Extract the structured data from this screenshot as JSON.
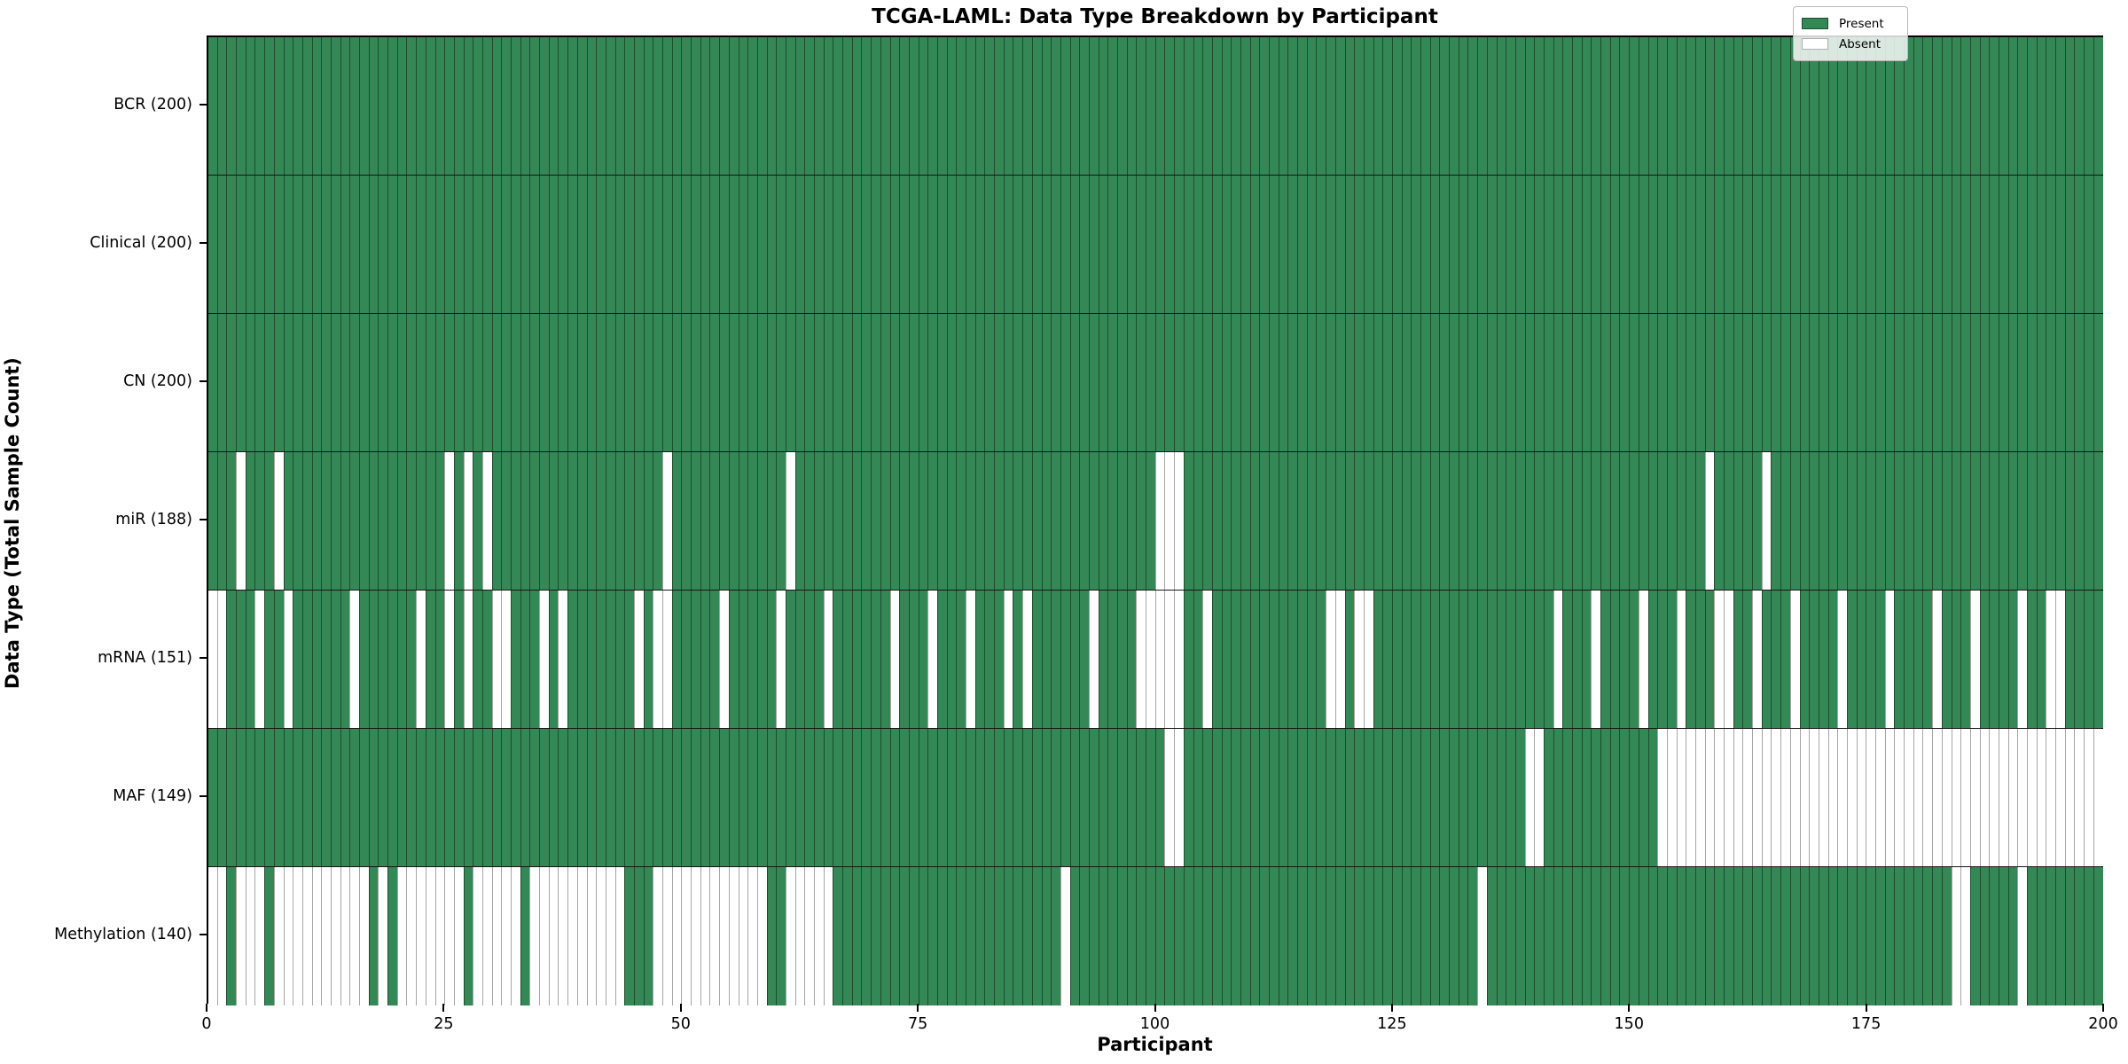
{
  "chart_data": {
    "type": "heatmap",
    "title": "TCGA-LAML: Data Type Breakdown by Participant",
    "xlabel": "Participant",
    "ylabel": "Data Type (Total Sample Count)",
    "n_participants": 200,
    "x_range": [
      0,
      200
    ],
    "x_ticks": [
      0,
      25,
      50,
      75,
      100,
      125,
      150,
      175,
      200
    ],
    "grid": "cell-edges",
    "legend_position": "upper right",
    "legend": [
      {
        "label": "Present",
        "color": "#338856"
      },
      {
        "label": "Absent",
        "color": "#ffffff"
      }
    ],
    "colors": {
      "present": "#338856",
      "present_edge": "#1f4b30",
      "absent": "#ffffff",
      "absent_edge": "#a6a6a6",
      "row_divider": "#161616"
    },
    "rows": [
      {
        "label": "BCR (200)",
        "count": 200,
        "absent": []
      },
      {
        "label": "Clinical (200)",
        "count": 200,
        "absent": []
      },
      {
        "label": "CN (200)",
        "count": 200,
        "absent": []
      },
      {
        "label": "miR (188)",
        "count": 188,
        "absent": [
          3,
          7,
          25,
          27,
          29,
          48,
          61,
          100,
          101,
          102,
          158,
          164
        ]
      },
      {
        "label": "mRNA (151)",
        "count": 151,
        "absent": [
          0,
          1,
          5,
          8,
          15,
          22,
          25,
          27,
          30,
          31,
          35,
          37,
          45,
          47,
          48,
          54,
          60,
          65,
          72,
          76,
          80,
          84,
          86,
          93,
          98,
          99,
          100,
          101,
          102,
          105,
          118,
          119,
          121,
          122,
          142,
          146,
          151,
          155,
          159,
          160,
          163,
          167,
          172,
          177,
          182,
          186,
          191,
          194,
          195
        ]
      },
      {
        "label": "MAF (149)",
        "count": 149,
        "absent": [
          101,
          102,
          139,
          140,
          153,
          154,
          155,
          156,
          157,
          158,
          159,
          160,
          161,
          162,
          163,
          164,
          165,
          166,
          167,
          168,
          169,
          170,
          171,
          172,
          173,
          174,
          175,
          176,
          177,
          178,
          179,
          180,
          181,
          182,
          183,
          184,
          185,
          186,
          187,
          188,
          189,
          190,
          191,
          192,
          193,
          194,
          195,
          196,
          197,
          198,
          199
        ]
      },
      {
        "label": "Methylation (140)",
        "count": 140,
        "absent": [
          0,
          1,
          3,
          4,
          5,
          7,
          8,
          9,
          10,
          11,
          12,
          13,
          14,
          15,
          16,
          18,
          20,
          21,
          22,
          23,
          24,
          25,
          26,
          28,
          29,
          30,
          31,
          32,
          34,
          35,
          36,
          37,
          38,
          39,
          40,
          41,
          42,
          43,
          47,
          48,
          49,
          50,
          51,
          52,
          53,
          54,
          55,
          56,
          57,
          58,
          61,
          62,
          63,
          64,
          65,
          90,
          134,
          184,
          185,
          191
        ]
      }
    ]
  }
}
